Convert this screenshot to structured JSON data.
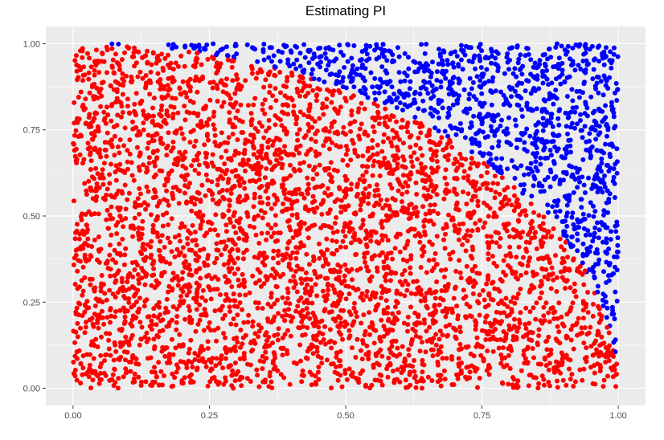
{
  "chart_data": {
    "type": "scatter",
    "title": "Estimating PI",
    "xlabel": "",
    "ylabel": "",
    "xlim": [
      -0.05,
      1.05
    ],
    "ylim": [
      -0.05,
      1.05
    ],
    "x_ticks": [
      0.0,
      0.25,
      0.5,
      0.75,
      1.0
    ],
    "y_ticks": [
      0.0,
      0.25,
      0.5,
      0.75,
      1.0
    ],
    "x_tick_labels": [
      "0.00",
      "0.25",
      "0.50",
      "0.75",
      "1.00"
    ],
    "y_tick_labels": [
      "0.00",
      "0.25",
      "0.50",
      "0.75",
      "1.00"
    ],
    "grid": true,
    "legend": "none",
    "panel_background": "#ebebeb",
    "grid_color": "#ffffff",
    "series": [
      {
        "condition": "x^2 + y^2 <= 1",
        "color": "#ff0000"
      },
      {
        "condition": "x^2 + y^2 > 1",
        "color": "#0000ff"
      }
    ],
    "points": {
      "count": 5000,
      "distribution": "uniform",
      "x_range": [
        0,
        1
      ],
      "y_range": [
        0,
        1
      ]
    }
  }
}
